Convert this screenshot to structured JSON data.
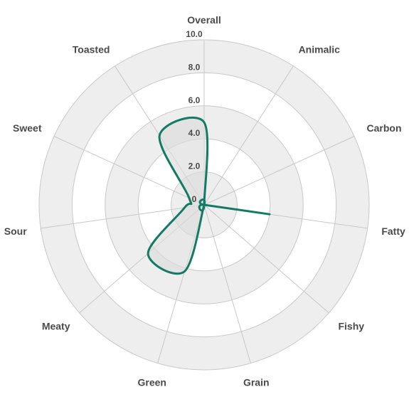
{
  "chart_data": {
    "type": "radar",
    "title": "",
    "axes": [
      "Overall",
      "Animalic",
      "Carbon",
      "Fatty",
      "Fishy",
      "Grain",
      "Green",
      "Meaty",
      "Sour",
      "Sweet",
      "Toasted"
    ],
    "series": [
      {
        "values": [
          5.0,
          0,
          0,
          4.0,
          0,
          0,
          4.2,
          4.5,
          1.2,
          1.0,
          5.0
        ]
      }
    ],
    "r_ticks": [
      "0",
      "2.0",
      "4.0",
      "6.0",
      "8.0",
      "10.0"
    ],
    "r_range": [
      0,
      10
    ],
    "grid": true,
    "colors": {
      "series": "#137a64",
      "fill": "#dcdcdc",
      "grid_band": "#eeeeee",
      "grid_line": "#c8c8c8"
    }
  }
}
